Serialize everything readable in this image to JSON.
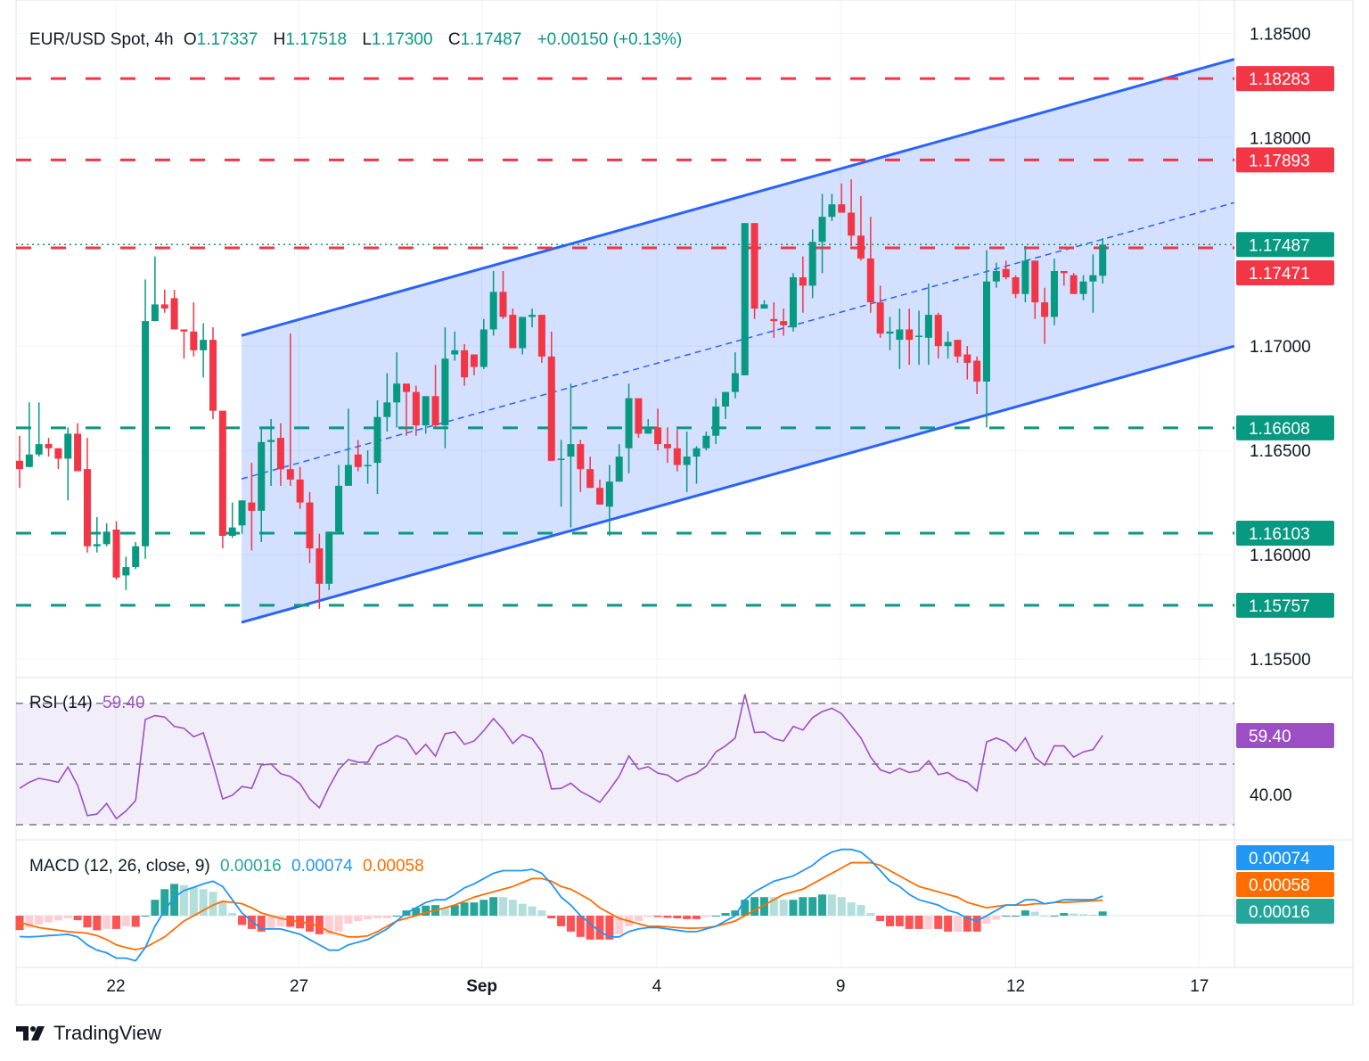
{
  "header": {
    "symbol": "EUR/USD Spot, 4h",
    "open_label": "O",
    "open": "1.17337",
    "high_label": "H",
    "high": "1.17518",
    "low_label": "L",
    "low": "1.17300",
    "close_label": "C",
    "close": "1.17487",
    "change": "+0.00150 (+0.13%)"
  },
  "rsi_legend": {
    "label": "RSI (14)",
    "value": "59.40"
  },
  "macd_legend": {
    "label": "MACD (12, 26, close, 9)",
    "hist": "0.00016",
    "macd": "0.00074",
    "signal": "0.00058"
  },
  "brand": {
    "name": "TradingView",
    "icon": "tradingview-logo-icon"
  },
  "colors": {
    "up": "#089981",
    "down": "#f23645",
    "channel": "#2962ff",
    "rsi": "#9c4fc4",
    "macd": "#2196f3",
    "signal": "#ff6d00",
    "support": "#089981",
    "resistance": "#f23645"
  },
  "chart_data": [
    {
      "type": "candlestick",
      "symbol": "EUR/USD Spot",
      "timeframe": "4h",
      "ylim": [
        1.1541,
        1.1866
      ],
      "y_ticks": [
        "1.18500",
        "1.18000",
        "1.17000",
        "1.16500",
        "1.16000",
        "1.15500"
      ],
      "y_tick_values": [
        1.185,
        1.18,
        1.17,
        1.165,
        1.16,
        1.155
      ],
      "x_ticks": [
        "22",
        "27",
        "Sep",
        "4",
        "9",
        "12",
        "17"
      ],
      "grid": true,
      "ohlc": [
        [
          1.1645,
          1.1657,
          1.1632,
          1.1641
        ],
        [
          1.1642,
          1.1673,
          1.1642,
          1.1648
        ],
        [
          1.1648,
          1.1673,
          1.1647,
          1.1653
        ],
        [
          1.1653,
          1.1656,
          1.1647,
          1.1651
        ],
        [
          1.1651,
          1.1651,
          1.1641,
          1.1646
        ],
        [
          1.1646,
          1.1661,
          1.1626,
          1.1658
        ],
        [
          1.1658,
          1.1663,
          1.164,
          1.164
        ],
        [
          1.1641,
          1.1656,
          1.1601,
          1.1604
        ],
        [
          1.1604,
          1.1618,
          1.1601,
          1.1605
        ],
        [
          1.1605,
          1.1615,
          1.1604,
          1.1611
        ],
        [
          1.1612,
          1.1616,
          1.1588,
          1.1589
        ],
        [
          1.159,
          1.1599,
          1.1583,
          1.1594
        ],
        [
          1.1594,
          1.1606,
          1.1593,
          1.1604
        ],
        [
          1.1604,
          1.1732,
          1.1598,
          1.1712
        ],
        [
          1.1712,
          1.1743,
          1.1712,
          1.172
        ],
        [
          1.172,
          1.1727,
          1.1716,
          1.1718
        ],
        [
          1.1723,
          1.1727,
          1.1708,
          1.1708
        ],
        [
          1.1708,
          1.1708,
          1.1694,
          1.1707
        ],
        [
          1.1707,
          1.1721,
          1.1695,
          1.1698
        ],
        [
          1.1698,
          1.1711,
          1.1685,
          1.1703
        ],
        [
          1.1703,
          1.1709,
          1.1665,
          1.1669
        ],
        [
          1.1669,
          1.1669,
          1.1603,
          1.1609
        ],
        [
          1.1609,
          1.1625,
          1.1608,
          1.1613
        ],
        [
          1.1614,
          1.1626,
          1.161,
          1.1626
        ],
        [
          1.1625,
          1.1644,
          1.1602,
          1.1621
        ],
        [
          1.1621,
          1.1661,
          1.1606,
          1.1654
        ],
        [
          1.1654,
          1.1665,
          1.1633,
          1.1655
        ],
        [
          1.1656,
          1.1663,
          1.1633,
          1.1641
        ],
        [
          1.1641,
          1.1706,
          1.1633,
          1.1636
        ],
        [
          1.1636,
          1.1642,
          1.1622,
          1.1625
        ],
        [
          1.1625,
          1.163,
          1.1596,
          1.1603
        ],
        [
          1.1603,
          1.161,
          1.1574,
          1.1586
        ],
        [
          1.1586,
          1.1611,
          1.1583,
          1.1611
        ],
        [
          1.1611,
          1.1643,
          1.161,
          1.1633
        ],
        [
          1.1633,
          1.167,
          1.1633,
          1.1643
        ],
        [
          1.1648,
          1.1655,
          1.164,
          1.1642
        ],
        [
          1.1643,
          1.165,
          1.1634,
          1.1643
        ],
        [
          1.1644,
          1.1674,
          1.1629,
          1.1666
        ],
        [
          1.1666,
          1.1687,
          1.1659,
          1.1673
        ],
        [
          1.1673,
          1.1697,
          1.1661,
          1.1682
        ],
        [
          1.1682,
          1.1682,
          1.1657,
          1.1678
        ],
        [
          1.1678,
          1.1681,
          1.1657,
          1.1662
        ],
        [
          1.1662,
          1.1676,
          1.1658,
          1.1676
        ],
        [
          1.1676,
          1.1691,
          1.1661,
          1.1662
        ],
        [
          1.1662,
          1.1709,
          1.1651,
          1.1694
        ],
        [
          1.1696,
          1.1707,
          1.1693,
          1.1698
        ],
        [
          1.1698,
          1.1701,
          1.1681,
          1.1685
        ],
        [
          1.1696,
          1.1696,
          1.1686,
          1.169
        ],
        [
          1.169,
          1.1713,
          1.1689,
          1.1708
        ],
        [
          1.1708,
          1.1736,
          1.1705,
          1.1726
        ],
        [
          1.1726,
          1.1736,
          1.1713,
          1.1714
        ],
        [
          1.1715,
          1.1718,
          1.1699,
          1.1699
        ],
        [
          1.1699,
          1.1714,
          1.1696,
          1.1714
        ],
        [
          1.1714,
          1.1718,
          1.1709,
          1.1715
        ],
        [
          1.1715,
          1.1715,
          1.1692,
          1.1695
        ],
        [
          1.1695,
          1.1707,
          1.1645,
          1.1645
        ],
        [
          1.1646,
          1.1655,
          1.1623,
          1.1646
        ],
        [
          1.1647,
          1.1682,
          1.1613,
          1.1653
        ],
        [
          1.1653,
          1.1655,
          1.163,
          1.1641
        ],
        [
          1.1641,
          1.1647,
          1.1632,
          1.1632
        ],
        [
          1.1632,
          1.1636,
          1.1624,
          1.1624
        ],
        [
          1.1623,
          1.1643,
          1.1609,
          1.1635
        ],
        [
          1.1635,
          1.1653,
          1.1635,
          1.1647
        ],
        [
          1.1651,
          1.1682,
          1.1639,
          1.1675
        ],
        [
          1.1675,
          1.1675,
          1.1656,
          1.1658
        ],
        [
          1.1658,
          1.1665,
          1.1658,
          1.1661
        ],
        [
          1.1661,
          1.167,
          1.165,
          1.1653
        ],
        [
          1.1653,
          1.1661,
          1.1644,
          1.1651
        ],
        [
          1.1651,
          1.166,
          1.164,
          1.1643
        ],
        [
          1.1643,
          1.1659,
          1.163,
          1.1647
        ],
        [
          1.1647,
          1.1652,
          1.1634,
          1.1651
        ],
        [
          1.1651,
          1.1659,
          1.165,
          1.1657
        ],
        [
          1.1657,
          1.1675,
          1.1653,
          1.1671
        ],
        [
          1.1671,
          1.1678,
          1.1665,
          1.1678
        ],
        [
          1.1678,
          1.1697,
          1.1675,
          1.1687
        ],
        [
          1.1686,
          1.1759,
          1.1686,
          1.1759
        ],
        [
          1.1759,
          1.1759,
          1.1713,
          1.1718
        ],
        [
          1.1718,
          1.1722,
          1.1718,
          1.172
        ],
        [
          1.1713,
          1.1721,
          1.1704,
          1.1712
        ],
        [
          1.1712,
          1.1718,
          1.1705,
          1.171
        ],
        [
          1.1709,
          1.1735,
          1.1707,
          1.1733
        ],
        [
          1.1733,
          1.1743,
          1.1716,
          1.1729
        ],
        [
          1.1729,
          1.1756,
          1.1723,
          1.175
        ],
        [
          1.175,
          1.1773,
          1.1735,
          1.1762
        ],
        [
          1.1762,
          1.1773,
          1.176,
          1.1768
        ],
        [
          1.1768,
          1.1778,
          1.1764,
          1.1764
        ],
        [
          1.1764,
          1.178,
          1.1748,
          1.1753
        ],
        [
          1.1753,
          1.1772,
          1.1741,
          1.1742
        ],
        [
          1.1742,
          1.1762,
          1.1716,
          1.1721
        ],
        [
          1.1721,
          1.1729,
          1.1704,
          1.1706
        ],
        [
          1.1706,
          1.1714,
          1.1698,
          1.1707
        ],
        [
          1.1703,
          1.1718,
          1.1689,
          1.1708
        ],
        [
          1.1708,
          1.1718,
          1.1691,
          1.1703
        ],
        [
          1.1705,
          1.1717,
          1.1691,
          1.1705
        ],
        [
          1.1704,
          1.173,
          1.1691,
          1.1715
        ],
        [
          1.1715,
          1.1716,
          1.1694,
          1.17
        ],
        [
          1.17,
          1.1707,
          1.1694,
          1.1702
        ],
        [
          1.1703,
          1.1703,
          1.1692,
          1.1695
        ],
        [
          1.1696,
          1.17,
          1.1684,
          1.1692
        ],
        [
          1.1693,
          1.1695,
          1.1677,
          1.1683
        ],
        [
          1.1683,
          1.1746,
          1.1661,
          1.1731
        ],
        [
          1.1731,
          1.174,
          1.1728,
          1.1736
        ],
        [
          1.1737,
          1.1741,
          1.1732,
          1.1733
        ],
        [
          1.1733,
          1.1734,
          1.1723,
          1.1725
        ],
        [
          1.1725,
          1.1748,
          1.1721,
          1.1741
        ],
        [
          1.1741,
          1.1741,
          1.1713,
          1.1721
        ],
        [
          1.1721,
          1.1728,
          1.1701,
          1.1714
        ],
        [
          1.1714,
          1.1742,
          1.171,
          1.1736
        ],
        [
          1.1736,
          1.1736,
          1.1729,
          1.1735
        ],
        [
          1.1734,
          1.1735,
          1.1725,
          1.1725
        ],
        [
          1.1725,
          1.1734,
          1.1722,
          1.1731
        ],
        [
          1.1731,
          1.1744,
          1.1716,
          1.1734
        ],
        [
          1.17337,
          1.17518,
          1.173,
          1.17487
        ]
      ],
      "current_price": {
        "value": 1.17487,
        "label": "1.17487"
      },
      "levels": [
        {
          "value": 1.18283,
          "label": "1.18283",
          "kind": "resistance"
        },
        {
          "value": 1.17893,
          "label": "1.17893",
          "kind": "resistance"
        },
        {
          "value": 1.17471,
          "label": "1.17471",
          "kind": "resistance"
        },
        {
          "value": 1.16608,
          "label": "1.16608",
          "kind": "support"
        },
        {
          "value": 1.16103,
          "label": "1.16103",
          "kind": "support"
        },
        {
          "value": 1.15757,
          "label": "1.15757",
          "kind": "support"
        }
      ],
      "channel": {
        "start_bar": 23.95,
        "end_bar": 126.6,
        "upper": [
          1.17051,
          1.18376
        ],
        "middle": [
          1.16363,
          1.17688
        ],
        "lower": [
          1.15675,
          1.17
        ]
      }
    },
    {
      "type": "line",
      "name": "RSI (14)",
      "ylim": [
        25,
        78.5
      ],
      "levels": [
        70,
        50,
        30
      ],
      "y_tick": "40.00",
      "last_label": "59.40",
      "values": [
        42,
        44,
        45.3,
        44.7,
        44,
        49,
        43,
        33,
        33.5,
        37,
        32,
        34.5,
        38,
        64.7,
        66,
        65.5,
        62.4,
        61.8,
        59,
        60.3,
        50,
        38.5,
        39.7,
        42.6,
        42,
        49.7,
        50,
        46.8,
        45.9,
        43.5,
        38.5,
        35.6,
        42.4,
        48.2,
        51.5,
        50.6,
        50.6,
        55.9,
        57.4,
        59.4,
        58,
        53.2,
        56.5,
        52.6,
        60,
        60.6,
        56.5,
        57.6,
        61,
        65,
        61.5,
        56.8,
        59.7,
        58.4,
        54,
        41.8,
        42,
        43.7,
        41,
        39.3,
        37.4,
        41.5,
        46,
        52.7,
        48.3,
        49.1,
        47,
        46.4,
        44.2,
        45.9,
        47,
        49.3,
        54,
        56,
        58.6,
        73,
        60.4,
        60.6,
        58.4,
        57.6,
        62.4,
        61.2,
        65.3,
        67.3,
        68.4,
        66.6,
        62.6,
        58.6,
        52.3,
        48.1,
        47,
        48.6,
        47.2,
        47.8,
        51.1,
        46.5,
        47.2,
        45,
        44,
        41.1,
        57.3,
        58.6,
        57.3,
        54.3,
        58.6,
        52.1,
        49.6,
        56,
        56,
        52.3,
        54,
        54.8,
        59.4
      ]
    },
    {
      "type": "bar+line",
      "name": "MACD (12, 26, close, 9)",
      "ylim": [
        -0.00195,
        0.00286
      ],
      "labels": {
        "macd": "0.00074",
        "signal": "0.00058",
        "hist": "0.00016"
      },
      "macd": [
        -0.00079,
        -0.0008,
        -0.00078,
        -0.00075,
        -0.00073,
        -0.0007,
        -0.0008,
        -0.0011,
        -0.0013,
        -0.0014,
        -0.0016,
        -0.0016,
        -0.0017,
        -0.0012,
        -0.0004,
        0.0002,
        0.0007,
        0.00095,
        0.00107,
        0.0012,
        0.0013,
        0.0011,
        0.0006,
        0.0001,
        -0.0002,
        -0.0005,
        -0.0005,
        -0.0005,
        -0.0006,
        -0.0007,
        -0.0009,
        -0.0011,
        -0.0013,
        -0.0013,
        -0.0011,
        -0.001,
        -0.0009,
        -0.0007,
        -0.0005,
        -0.0002,
        0.0001,
        0.0003,
        0.0005,
        0.0006,
        0.0006,
        0.0008,
        0.00105,
        0.0012,
        0.0014,
        0.0016,
        0.0017,
        0.0017,
        0.0017,
        0.00175,
        0.0016,
        0.0012,
        0.0007,
        0.0004,
        0.0,
        -0.0003,
        -0.0006,
        -0.0008,
        -0.0008,
        -0.0006,
        -0.0005,
        -0.00045,
        -0.00045,
        -0.0005,
        -0.00055,
        -0.0006,
        -0.0006,
        -0.0005,
        -0.0004,
        -0.0002,
        0.0,
        0.0006,
        0.0009,
        0.0011,
        0.0013,
        0.0014,
        0.0015,
        0.0017,
        0.0019,
        0.0022,
        0.0024,
        0.0025,
        0.0025,
        0.0024,
        0.0021,
        0.0017,
        0.0013,
        0.0011,
        0.0008,
        0.0006,
        0.0005,
        0.0004,
        0.0002,
        0.0001,
        -0.0001,
        -0.0002,
        0.0,
        0.0002,
        0.0004,
        0.0004,
        0.0006,
        0.0006,
        0.00045,
        0.0005,
        0.0006,
        0.0006,
        0.0006,
        0.0006,
        0.00074
      ],
      "signal": [
        -0.00025,
        -0.00035,
        -0.00045,
        -0.0005,
        -0.00055,
        -0.0006,
        -0.00063,
        -0.00066,
        -0.00075,
        -0.0009,
        -0.0011,
        -0.0012,
        -0.00128,
        -0.0012,
        -0.001,
        -0.0008,
        -0.0005,
        -0.0002,
        0.0,
        0.0002,
        0.0004,
        0.00054,
        0.0005,
        0.00045,
        0.0003,
        0.0001,
        0.0,
        -0.0001,
        -0.00018,
        -0.00022,
        -0.0003,
        -0.0004,
        -0.0006,
        -0.0007,
        -0.0008,
        -0.0008,
        -0.00076,
        -0.0006,
        -0.0004,
        -0.0002,
        -0.0001,
        0.0,
        0.00012,
        0.0002,
        0.0003,
        0.0004,
        0.00055,
        0.0007,
        0.0008,
        0.0009,
        0.001,
        0.0011,
        0.00125,
        0.0014,
        0.0014,
        0.0013,
        0.0011,
        0.001,
        0.0008,
        0.0006,
        0.0003,
        0.0001,
        -0.0001,
        -0.0002,
        -0.0003,
        -0.0004,
        -0.0004,
        -0.00042,
        -0.00045,
        -0.00047,
        -0.00047,
        -0.00045,
        -0.0004,
        -0.0003,
        -0.0002,
        0.0,
        0.0002,
        0.0004,
        0.0006,
        0.0008,
        0.0009,
        0.001,
        0.0012,
        0.0014,
        0.0016,
        0.0018,
        0.002,
        0.002,
        0.002,
        0.0019,
        0.0017,
        0.0015,
        0.0013,
        0.0011,
        0.001,
        0.0009,
        0.0008,
        0.0007,
        0.0005,
        0.0004,
        0.0003,
        0.00035,
        0.0004,
        0.0004,
        0.0004,
        0.00045,
        0.00045,
        0.0005,
        0.0005,
        0.00052,
        0.00054,
        0.00056,
        0.00058
      ]
    }
  ]
}
